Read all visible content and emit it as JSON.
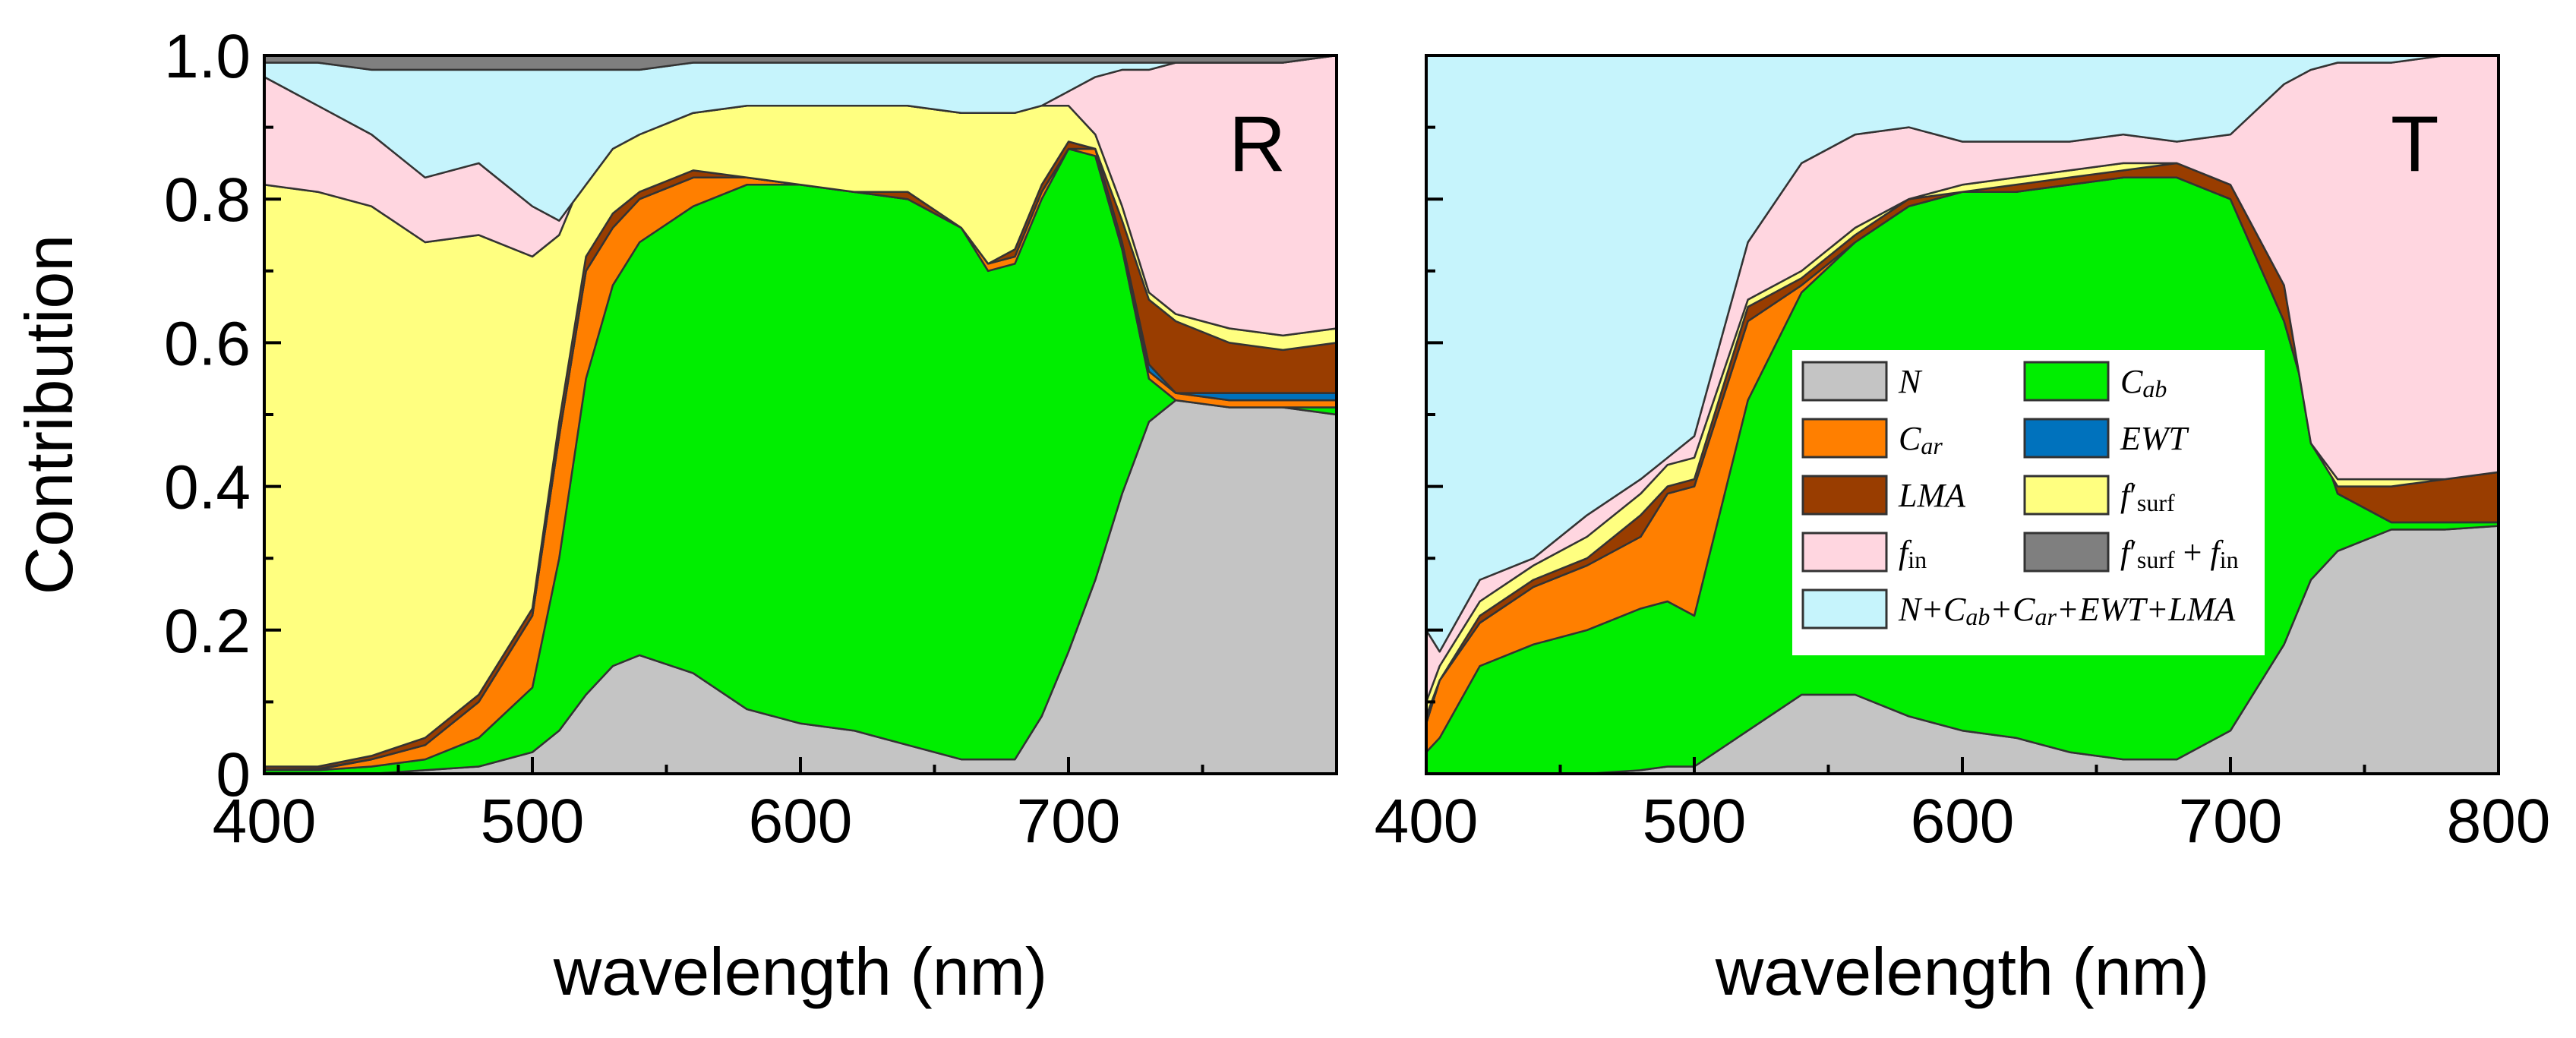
{
  "chart_data": [
    {
      "type": "area",
      "stacking": "cumulative",
      "panel_label": "R",
      "xlabel": "wavelength (nm)",
      "ylabel": "Contribution",
      "xlim": [
        400,
        800
      ],
      "ylim": [
        0,
        1.0
      ],
      "x_ticks": [
        "400",
        "500",
        "600",
        "700"
      ],
      "y_ticks": [
        "0",
        "0.2",
        "0.4",
        "0.6",
        "0.8",
        "1.0"
      ],
      "x": [
        400,
        420,
        440,
        460,
        480,
        500,
        510,
        520,
        530,
        540,
        560,
        580,
        600,
        620,
        640,
        660,
        670,
        680,
        690,
        700,
        710,
        720,
        730,
        740,
        760,
        780,
        800
      ],
      "series": [
        {
          "name": "N",
          "color": "#c4c4c4",
          "cumulative": [
            0,
            0,
            0,
            0.005,
            0.01,
            0.03,
            0.06,
            0.11,
            0.15,
            0.165,
            0.14,
            0.09,
            0.07,
            0.06,
            0.04,
            0.02,
            0.02,
            0.02,
            0.08,
            0.17,
            0.27,
            0.39,
            0.49,
            0.52,
            0.52,
            0.51,
            0.5
          ]
        },
        {
          "name": "Cab",
          "color": "#00ee00",
          "cumulative": [
            0.005,
            0.005,
            0.01,
            0.02,
            0.05,
            0.12,
            0.3,
            0.55,
            0.68,
            0.74,
            0.79,
            0.82,
            0.82,
            0.81,
            0.8,
            0.76,
            0.7,
            0.71,
            0.8,
            0.87,
            0.86,
            0.73,
            0.55,
            0.52,
            0.51,
            0.51,
            0.51
          ]
        },
        {
          "name": "Car",
          "color": "#ff7f00",
          "cumulative": [
            0.005,
            0.006,
            0.02,
            0.04,
            0.1,
            0.22,
            0.47,
            0.7,
            0.76,
            0.8,
            0.83,
            0.83,
            0.82,
            0.81,
            0.8,
            0.76,
            0.71,
            0.72,
            0.81,
            0.87,
            0.87,
            0.74,
            0.56,
            0.53,
            0.52,
            0.52,
            0.52
          ]
        },
        {
          "name": "EWT",
          "color": "#0072bd",
          "cumulative": [
            0.006,
            0.007,
            0.02,
            0.04,
            0.1,
            0.22,
            0.47,
            0.7,
            0.76,
            0.8,
            0.83,
            0.83,
            0.82,
            0.81,
            0.8,
            0.76,
            0.71,
            0.72,
            0.81,
            0.87,
            0.87,
            0.74,
            0.57,
            0.53,
            0.53,
            0.53,
            0.53
          ]
        },
        {
          "name": "LMA",
          "color": "#993d00",
          "cumulative": [
            0.01,
            0.01,
            0.025,
            0.05,
            0.11,
            0.23,
            0.49,
            0.72,
            0.78,
            0.81,
            0.84,
            0.83,
            0.82,
            0.81,
            0.81,
            0.76,
            0.71,
            0.73,
            0.82,
            0.88,
            0.87,
            0.77,
            0.66,
            0.63,
            0.6,
            0.59,
            0.6
          ]
        },
        {
          "name": "f'surf",
          "color": "#ffff80",
          "cumulative": [
            0.82,
            0.81,
            0.79,
            0.74,
            0.75,
            0.72,
            0.75,
            0.84,
            0.88,
            0.9,
            0.92,
            0.93,
            0.93,
            0.93,
            0.93,
            0.92,
            0.92,
            0.92,
            0.93,
            0.93,
            0.89,
            0.79,
            0.67,
            0.64,
            0.62,
            0.61,
            0.62
          ]
        },
        {
          "name": "fin",
          "color": "#ffd6e0",
          "cumulative": [
            0.97,
            0.93,
            0.89,
            0.83,
            0.85,
            0.79,
            0.77,
            0.82,
            0.87,
            0.89,
            0.92,
            0.93,
            0.93,
            0.93,
            0.93,
            0.92,
            0.92,
            0.92,
            0.93,
            0.95,
            0.97,
            0.98,
            0.98,
            0.99,
            0.99,
            0.99,
            1.0
          ]
        },
        {
          "name": "N+Cab+Car+EWT+LMA",
          "color": "#c6f4fc",
          "cumulative": [
            0.99,
            0.99,
            0.98,
            0.98,
            0.98,
            0.98,
            0.98,
            0.98,
            0.98,
            0.98,
            0.99,
            0.99,
            0.99,
            0.99,
            0.99,
            0.99,
            0.99,
            0.99,
            0.99,
            0.99,
            0.99,
            0.99,
            0.99,
            0.99,
            0.99,
            0.99,
            1.0
          ]
        },
        {
          "name": "f'surf + fin",
          "color": "#7f7f7f",
          "cumulative": [
            1,
            1,
            1,
            1,
            1,
            1,
            1,
            1,
            1,
            1,
            1,
            1,
            1,
            1,
            1,
            1,
            1,
            1,
            1,
            1,
            1,
            1,
            1,
            1,
            1,
            1,
            1
          ]
        }
      ]
    },
    {
      "type": "area",
      "stacking": "cumulative",
      "panel_label": "T",
      "xlabel": "wavelength (nm)",
      "ylabel": "",
      "xlim": [
        400,
        800
      ],
      "ylim": [
        0,
        1.0
      ],
      "x_ticks": [
        "400",
        "500",
        "600",
        "700",
        "800"
      ],
      "y_ticks": [],
      "x": [
        400,
        405,
        420,
        440,
        460,
        480,
        490,
        500,
        520,
        540,
        560,
        580,
        600,
        620,
        640,
        660,
        680,
        700,
        720,
        730,
        740,
        760,
        780,
        800
      ],
      "series": [
        {
          "name": "N",
          "color": "#c4c4c4",
          "cumulative": [
            0,
            0,
            0,
            0,
            0,
            0.005,
            0.01,
            0.01,
            0.06,
            0.11,
            0.11,
            0.08,
            0.06,
            0.05,
            0.03,
            0.02,
            0.02,
            0.06,
            0.18,
            0.27,
            0.31,
            0.34,
            0.34,
            0.345
          ]
        },
        {
          "name": "Cab",
          "color": "#00ee00",
          "cumulative": [
            0.03,
            0.05,
            0.15,
            0.18,
            0.2,
            0.23,
            0.24,
            0.22,
            0.52,
            0.67,
            0.74,
            0.79,
            0.81,
            0.81,
            0.82,
            0.83,
            0.83,
            0.8,
            0.63,
            0.5,
            0.39,
            0.35,
            0.35,
            0.35
          ]
        },
        {
          "name": "Car",
          "color": "#ff7f00",
          "cumulative": [
            0.07,
            0.13,
            0.21,
            0.26,
            0.29,
            0.33,
            0.39,
            0.4,
            0.63,
            0.68,
            0.74,
            0.79,
            0.81,
            0.81,
            0.82,
            0.83,
            0.83,
            0.8,
            0.63,
            0.5,
            0.39,
            0.35,
            0.35,
            0.35
          ]
        },
        {
          "name": "EWT",
          "color": "#0072bd",
          "cumulative": [
            0.07,
            0.13,
            0.21,
            0.26,
            0.29,
            0.33,
            0.39,
            0.4,
            0.63,
            0.68,
            0.74,
            0.79,
            0.81,
            0.81,
            0.82,
            0.83,
            0.83,
            0.8,
            0.63,
            0.5,
            0.39,
            0.35,
            0.35,
            0.35
          ]
        },
        {
          "name": "LMA",
          "color": "#993d00",
          "cumulative": [
            0.08,
            0.13,
            0.22,
            0.27,
            0.3,
            0.36,
            0.4,
            0.41,
            0.65,
            0.69,
            0.75,
            0.8,
            0.81,
            0.82,
            0.83,
            0.84,
            0.85,
            0.82,
            0.68,
            0.46,
            0.4,
            0.4,
            0.41,
            0.42
          ]
        },
        {
          "name": "f'surf",
          "color": "#ffff80",
          "cumulative": [
            0.1,
            0.15,
            0.24,
            0.29,
            0.33,
            0.39,
            0.43,
            0.44,
            0.66,
            0.7,
            0.76,
            0.8,
            0.82,
            0.83,
            0.84,
            0.85,
            0.85,
            0.82,
            0.68,
            0.46,
            0.41,
            0.41,
            0.41,
            0.42
          ]
        },
        {
          "name": "fin",
          "color": "#ffd6e0",
          "cumulative": [
            0.2,
            0.17,
            0.27,
            0.3,
            0.36,
            0.41,
            0.44,
            0.47,
            0.74,
            0.85,
            0.89,
            0.9,
            0.88,
            0.88,
            0.88,
            0.89,
            0.88,
            0.89,
            0.96,
            0.98,
            0.99,
            0.99,
            1.0,
            1.0
          ]
        },
        {
          "name": "N+Cab+Car+EWT+LMA",
          "color": "#c6f4fc",
          "cumulative": [
            1,
            1,
            1,
            1,
            1,
            1,
            1,
            1,
            1,
            1,
            1,
            1,
            1,
            1,
            1,
            1,
            1,
            1,
            1,
            1,
            1,
            1,
            1,
            1
          ]
        },
        {
          "name": "f'surf + fin",
          "color": "#7f7f7f",
          "cumulative": [
            1,
            1,
            1,
            1,
            1,
            1,
            1,
            1,
            1,
            1,
            1,
            1,
            1,
            1,
            1,
            1,
            1,
            1,
            1,
            1,
            1,
            1,
            1,
            1
          ]
        }
      ]
    }
  ],
  "legend": {
    "placement": "inside-right-panel-center",
    "entries": [
      {
        "name": "N",
        "color": "#c4c4c4"
      },
      {
        "name": "Cab",
        "color": "#00ee00"
      },
      {
        "name": "Car",
        "color": "#ff7f00"
      },
      {
        "name": "EWT",
        "color": "#0072bd"
      },
      {
        "name": "LMA",
        "color": "#993d00"
      },
      {
        "name": "f'surf",
        "color": "#ffff80"
      },
      {
        "name": "fin",
        "color": "#ffd6e0"
      },
      {
        "name": "f'surf + fin",
        "color": "#7f7f7f"
      },
      {
        "name": "N+Cab+Car+EWT+LMA",
        "color": "#c6f4fc"
      }
    ]
  }
}
